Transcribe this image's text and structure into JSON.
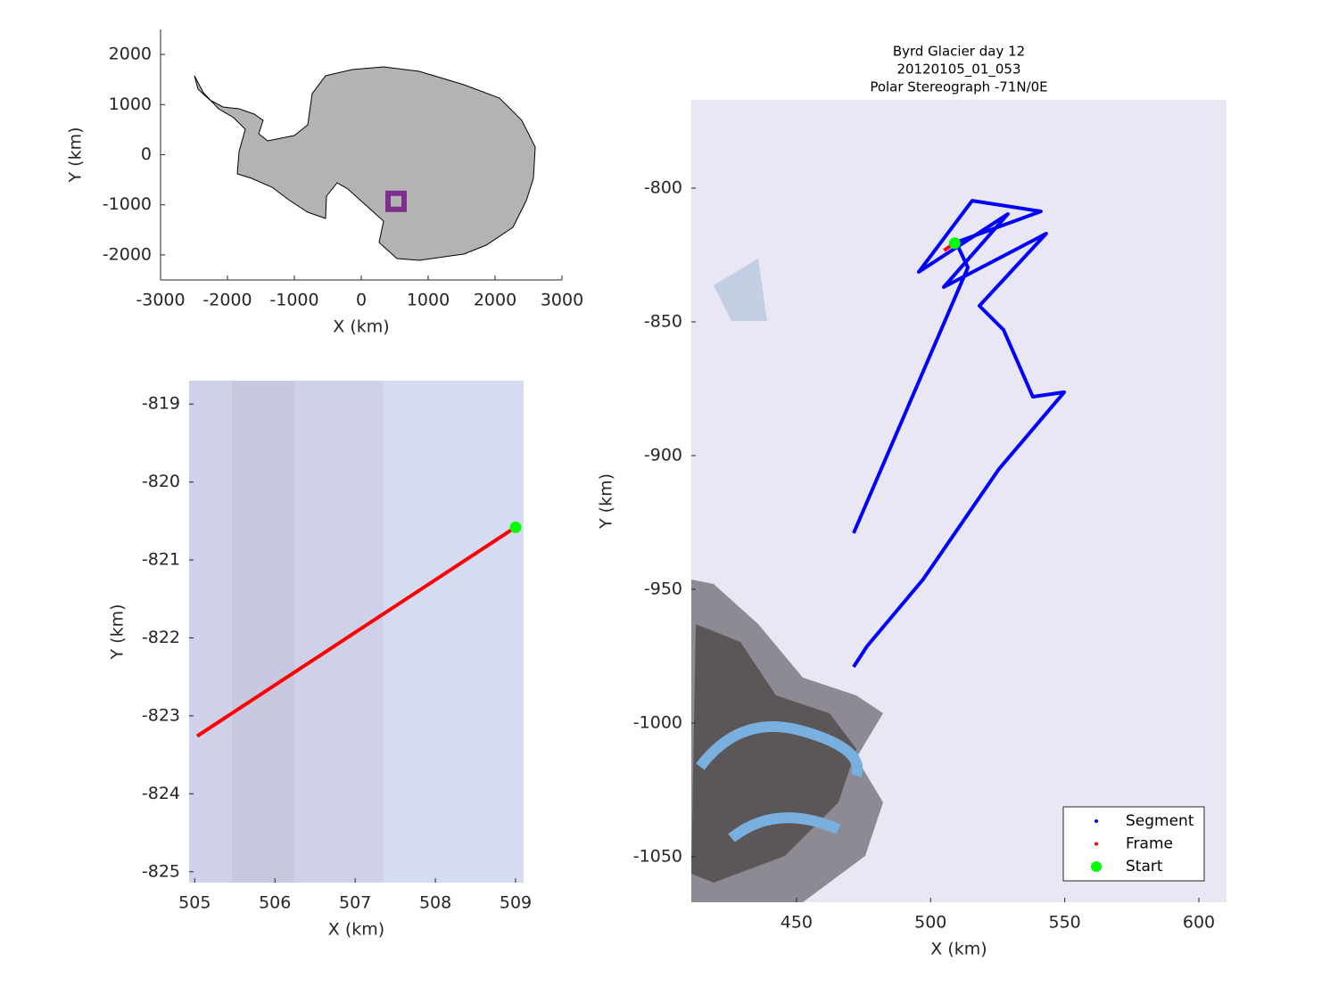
{
  "chart_data": [
    {
      "type": "map",
      "xlabel": "X (km)",
      "ylabel": "Y (km)",
      "xlim": [
        -3000,
        3000
      ],
      "ylim": [
        -2500,
        2500
      ],
      "xticks": [
        -3000,
        -2000,
        -1000,
        0,
        1000,
        2000,
        3000
      ],
      "yticks": [
        -2000,
        -1000,
        0,
        1000,
        2000
      ],
      "series": [
        {
          "color": "#7e2f8e",
          "mode": "square",
          "x": [
            520
          ],
          "values": [
            -930
          ]
        }
      ]
    },
    {
      "type": "map",
      "xlabel": "X (km)",
      "ylabel": "Y (km)",
      "xlim": [
        504.93,
        509.1
      ],
      "ylim": [
        -825.14,
        -818.7
      ],
      "xticks": [
        505,
        506,
        507,
        508,
        509
      ],
      "yticks": [
        -825,
        -824,
        -823,
        -822,
        -821,
        -820,
        -819
      ],
      "series": [
        {
          "color": "#ff0000",
          "mode": "line",
          "x": [
            505.03,
            509
          ],
          "values": [
            -823.26,
            -820.58
          ]
        },
        {
          "color": "#00ff00",
          "mode": "marker",
          "x": [
            509
          ],
          "values": [
            -820.58
          ]
        }
      ]
    },
    {
      "type": "map",
      "title": [
        "Byrd Glacier day 12",
        "20120105_01_053",
        "Polar Stereograph -71N/0E"
      ],
      "xlabel": "X (km)",
      "ylabel": "Y (km)",
      "xlim": [
        410.8,
        610.3
      ],
      "ylim": [
        -1067,
        -767
      ],
      "xticks": [
        450,
        500,
        550,
        600
      ],
      "yticks": [
        -1050,
        -1000,
        -950,
        -900,
        -850,
        -800
      ],
      "legend": "lower right",
      "series": [
        {
          "name": "Segment",
          "color": "#0000ff",
          "mode": "line",
          "x": [
            471.3,
            476.3,
            497.2,
            525.5,
            549.8,
            538.1,
            527.2,
            518.2,
            543.1,
            504.9,
            528.8,
            495.6,
            515.5,
            541.1,
            509.5,
            513.9,
            471.3
          ],
          "values": [
            -979,
            -971.3,
            -946.3,
            -905,
            -876.3,
            -878,
            -853,
            -844,
            -817,
            -837,
            -809.7,
            -831.3,
            -804.7,
            -808.7,
            -820.3,
            -829.7,
            -929
          ]
        },
        {
          "name": "Frame",
          "color": "#ff0000",
          "mode": "line",
          "x": [
            505.03,
            509
          ],
          "values": [
            -823.26,
            -820.58
          ]
        },
        {
          "name": "Start",
          "color": "#00ff00",
          "mode": "marker",
          "x": [
            509
          ],
          "values": [
            -820.58
          ]
        }
      ]
    }
  ]
}
